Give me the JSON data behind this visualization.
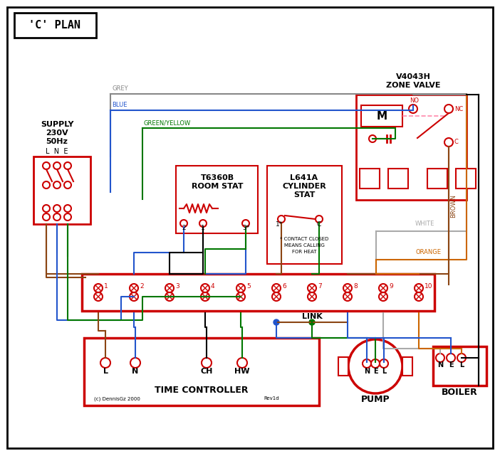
{
  "title": "'C' PLAN",
  "bg_color": "#ffffff",
  "border_color": "#000000",
  "red": "#cc0000",
  "blue": "#2255cc",
  "green": "#007700",
  "brown": "#8B4513",
  "grey": "#888888",
  "orange": "#cc6600",
  "white_wire": "#aaaaaa",
  "pink": "#ff88aa",
  "supply_text_lines": [
    "SUPPLY",
    "230V",
    "50Hz"
  ],
  "zone_valve_title": "V4043H\nZONE VALVE",
  "room_stat_title": "T6360B\nROOM STAT",
  "cyl_stat_title": "L641A\nCYLINDER\nSTAT",
  "time_controller_label": "TIME CONTROLLER",
  "pump_label": "PUMP",
  "boiler_label": "BOILER",
  "link_label": "LINK",
  "copyright": "(c) DennisGz 2000",
  "rev": "Rev1d"
}
